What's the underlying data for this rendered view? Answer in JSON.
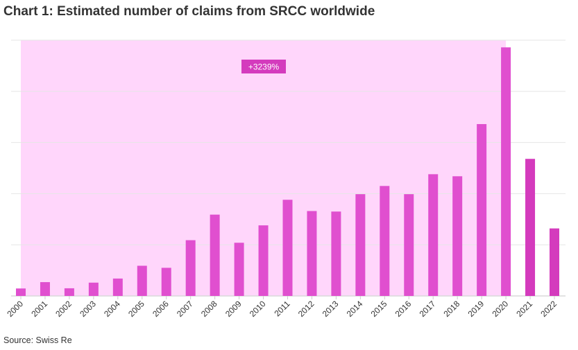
{
  "chart_data": {
    "type": "bar",
    "title": "Chart 1: Estimated number of claims from SRCC worldwide",
    "source": "Source: Swiss Re",
    "xlabel": "",
    "ylabel": "",
    "categories": [
      "2000",
      "2001",
      "2002",
      "2003",
      "2004",
      "2005",
      "2006",
      "2007",
      "2008",
      "2009",
      "2010",
      "2011",
      "2012",
      "2013",
      "2014",
      "2015",
      "2016",
      "2017",
      "2018",
      "2019",
      "2020",
      "2021",
      "2022"
    ],
    "values": [
      0.146,
      0.27,
      0.15,
      0.26,
      0.34,
      0.59,
      0.55,
      1.09,
      1.59,
      1.04,
      1.38,
      1.88,
      1.66,
      1.65,
      1.99,
      2.15,
      1.99,
      2.38,
      2.34,
      3.36,
      4.86,
      2.68,
      1.32
    ],
    "ylim": [
      0,
      5
    ],
    "grid": true,
    "highlight": {
      "from": "2000",
      "to": "2020",
      "label": "+3239%"
    },
    "colors": {
      "bar": "#e04fcf",
      "bar_outside": "#d43bbd",
      "highlight": "#ffd6fb",
      "annotation": "#d43bbd",
      "grid": "#e6e6e6"
    }
  }
}
